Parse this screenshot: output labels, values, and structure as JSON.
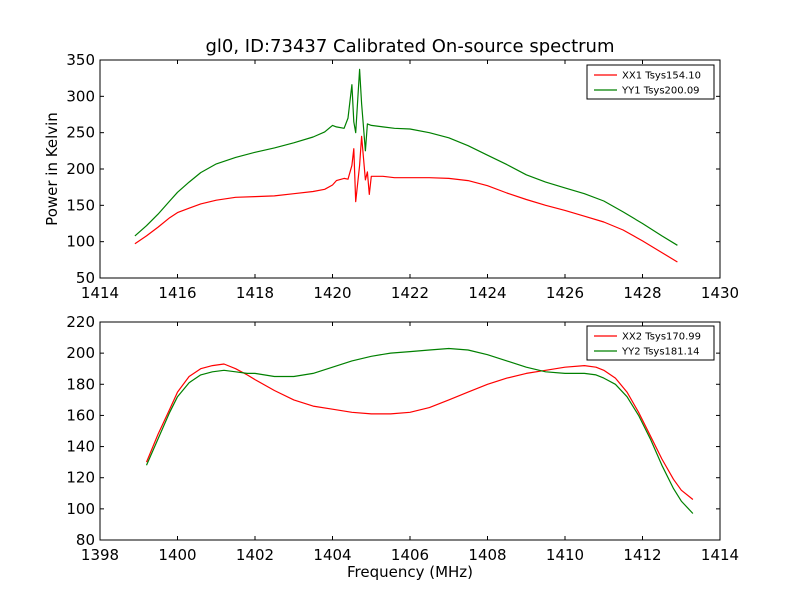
{
  "figure": {
    "title": "gl0, ID:73437 Calibrated On-source spectrum"
  },
  "chart_data": [
    {
      "type": "line",
      "ylabel": "Power in Kelvin",
      "xlabel": "",
      "xlim": [
        1414,
        1430
      ],
      "ylim": [
        50,
        350
      ],
      "xticks": [
        1414,
        1416,
        1418,
        1420,
        1422,
        1424,
        1426,
        1428,
        1430
      ],
      "yticks": [
        50,
        100,
        150,
        200,
        250,
        300,
        350
      ],
      "legend_position": "top-right",
      "series": [
        {
          "name": "XX1 Tsys154.10",
          "color": "#ff0000",
          "x": [
            1414.9,
            1415.2,
            1415.5,
            1415.8,
            1416.0,
            1416.3,
            1416.6,
            1417.0,
            1417.5,
            1418.0,
            1418.5,
            1419.0,
            1419.5,
            1419.8,
            1420.0,
            1420.1,
            1420.3,
            1420.4,
            1420.5,
            1420.55,
            1420.6,
            1420.7,
            1420.75,
            1420.85,
            1420.9,
            1420.95,
            1421.0,
            1421.3,
            1421.6,
            1422.0,
            1422.5,
            1423.0,
            1423.5,
            1424.0,
            1424.5,
            1425.0,
            1425.5,
            1426.0,
            1426.5,
            1427.0,
            1427.5,
            1428.0,
            1428.5,
            1428.9
          ],
          "values": [
            97,
            108,
            120,
            133,
            140,
            146,
            152,
            157,
            161,
            162,
            163,
            166,
            169,
            172,
            178,
            184,
            187,
            186,
            205,
            228,
            155,
            205,
            245,
            185,
            196,
            165,
            190,
            190,
            188,
            188,
            188,
            187,
            184,
            177,
            167,
            158,
            150,
            143,
            135,
            127,
            116,
            101,
            85,
            72
          ]
        },
        {
          "name": "YY1 Tsys200.09",
          "color": "#008000",
          "x": [
            1414.9,
            1415.2,
            1415.5,
            1415.8,
            1416.0,
            1416.3,
            1416.6,
            1417.0,
            1417.5,
            1418.0,
            1418.5,
            1419.0,
            1419.5,
            1419.8,
            1420.0,
            1420.1,
            1420.3,
            1420.4,
            1420.5,
            1420.55,
            1420.6,
            1420.7,
            1420.75,
            1420.85,
            1420.9,
            1421.0,
            1421.3,
            1421.6,
            1422.0,
            1422.5,
            1423.0,
            1423.5,
            1424.0,
            1424.5,
            1425.0,
            1425.5,
            1426.0,
            1426.5,
            1427.0,
            1427.5,
            1428.0,
            1428.5,
            1428.9
          ],
          "values": [
            108,
            122,
            138,
            156,
            168,
            182,
            195,
            207,
            216,
            223,
            229,
            236,
            244,
            251,
            260,
            258,
            256,
            270,
            316,
            265,
            250,
            337,
            290,
            225,
            262,
            260,
            258,
            256,
            255,
            250,
            243,
            232,
            219,
            206,
            192,
            182,
            174,
            166,
            156,
            141,
            125,
            108,
            95
          ]
        }
      ]
    },
    {
      "type": "line",
      "ylabel": "",
      "xlabel": "Frequency (MHz)",
      "xlim": [
        1398,
        1414
      ],
      "ylim": [
        80,
        220
      ],
      "xticks": [
        1398,
        1400,
        1402,
        1404,
        1406,
        1408,
        1410,
        1412,
        1414
      ],
      "yticks": [
        80,
        100,
        120,
        140,
        160,
        180,
        200,
        220
      ],
      "legend_position": "top-right",
      "series": [
        {
          "name": "XX2 Tsys170.99",
          "color": "#ff0000",
          "x": [
            1399.2,
            1399.5,
            1399.8,
            1400.0,
            1400.3,
            1400.6,
            1400.9,
            1401.2,
            1401.5,
            1401.8,
            1402.0,
            1402.5,
            1403.0,
            1403.5,
            1404.0,
            1404.5,
            1405.0,
            1405.5,
            1406.0,
            1406.5,
            1407.0,
            1407.5,
            1408.0,
            1408.5,
            1409.0,
            1409.5,
            1410.0,
            1410.5,
            1410.8,
            1411.0,
            1411.3,
            1411.6,
            1411.9,
            1412.2,
            1412.5,
            1412.8,
            1413.0,
            1413.3
          ],
          "values": [
            130,
            148,
            164,
            175,
            185,
            190,
            192,
            193,
            190,
            186,
            183,
            176,
            170,
            166,
            164,
            162,
            161,
            161,
            162,
            165,
            170,
            175,
            180,
            184,
            187,
            189,
            191,
            192,
            191,
            189,
            184,
            175,
            162,
            147,
            132,
            119,
            112,
            106
          ]
        },
        {
          "name": "YY2 Tsys181.14",
          "color": "#008000",
          "x": [
            1399.2,
            1399.5,
            1399.8,
            1400.0,
            1400.3,
            1400.6,
            1400.9,
            1401.2,
            1401.5,
            1401.8,
            1402.0,
            1402.5,
            1403.0,
            1403.5,
            1404.0,
            1404.5,
            1405.0,
            1405.5,
            1406.0,
            1406.5,
            1407.0,
            1407.5,
            1408.0,
            1408.5,
            1409.0,
            1409.5,
            1410.0,
            1410.5,
            1410.8,
            1411.0,
            1411.3,
            1411.6,
            1411.9,
            1412.2,
            1412.5,
            1412.8,
            1413.0,
            1413.3
          ],
          "values": [
            128,
            145,
            162,
            172,
            181,
            186,
            188,
            189,
            188,
            187,
            187,
            185,
            185,
            187,
            191,
            195,
            198,
            200,
            201,
            202,
            203,
            202,
            199,
            195,
            191,
            188,
            187,
            187,
            186,
            184,
            180,
            172,
            160,
            145,
            128,
            113,
            105,
            97
          ]
        }
      ]
    }
  ]
}
